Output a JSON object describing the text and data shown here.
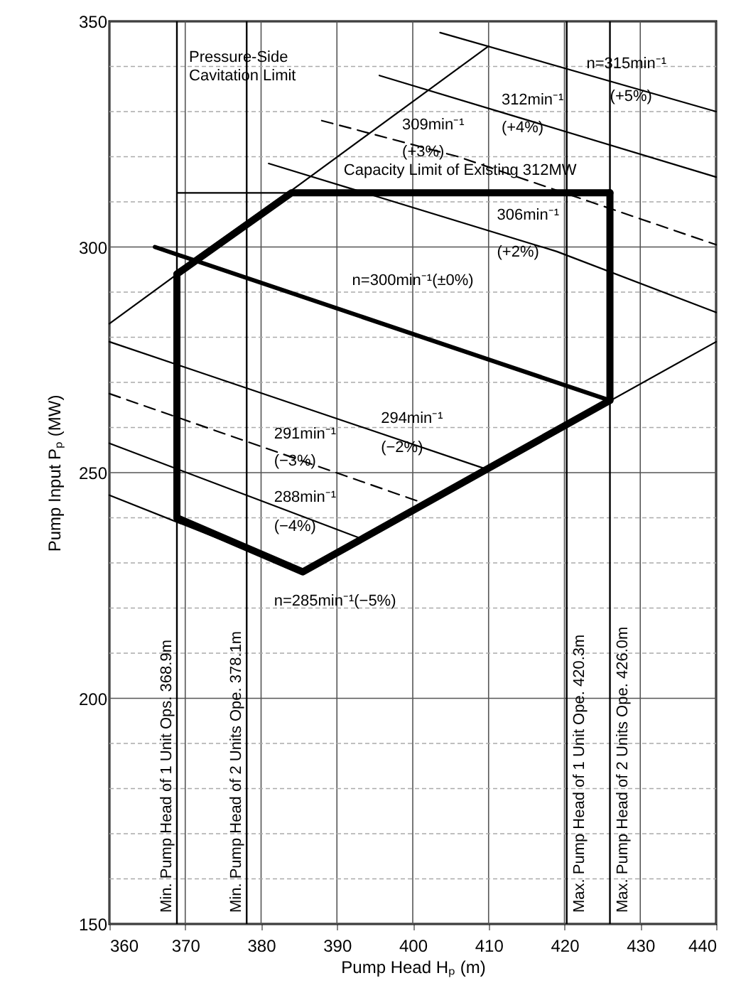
{
  "chart_data": {
    "type": "line",
    "xlabel": "Pump Head Hₚ (m)",
    "ylabel": "Pump Input Pₚ (MW)",
    "xlim": [
      360,
      440
    ],
    "ylim": [
      150,
      350
    ],
    "xticks": [
      360,
      370,
      380,
      390,
      400,
      410,
      420,
      430,
      440
    ],
    "yticks": [
      150,
      {
        "value": 160,
        "label": null
      },
      {
        "value": 170,
        "label": null
      },
      {
        "value": 180,
        "label": null
      },
      {
        "value": 190,
        "label": null
      },
      200,
      {
        "value": 210,
        "label": null
      },
      {
        "value": 220,
        "label": null
      },
      {
        "value": 230,
        "label": null
      },
      {
        "value": 240,
        "label": null
      },
      250,
      {
        "value": 260,
        "label": null
      },
      {
        "value": 270,
        "label": null
      },
      {
        "value": 280,
        "label": null
      },
      {
        "value": 290,
        "label": null
      },
      300,
      {
        "value": 310,
        "label": null
      },
      {
        "value": 320,
        "label": null
      },
      {
        "value": 330,
        "label": null
      },
      {
        "value": 340,
        "label": null
      },
      350
    ],
    "grid": true,
    "marker": "none",
    "series": [
      {
        "color": "#000000",
        "x": [
          368.9,
          384,
          426
        ],
        "values": [
          294,
          312,
          312
        ]
      },
      {
        "color": "#000000",
        "x": [
          368.9,
          385.5,
          426
        ],
        "values": [
          240,
          228,
          266
        ]
      },
      {
        "color": "#000000",
        "x": [
          368.9,
          368.9
        ],
        "values": [
          240,
          294
        ]
      },
      {
        "color": "#000000",
        "x": [
          426,
          426
        ],
        "values": [
          266,
          312
        ]
      },
      {
        "color": "#000000",
        "x": [
          366,
          426
        ],
        "values": [
          300,
          266
        ]
      },
      {
        "color": "#000000",
        "x": [
          403.6,
          440
        ],
        "values": [
          347.5,
          330
        ]
      },
      {
        "color": "#000000",
        "x": [
          395.6,
          440
        ],
        "values": [
          338,
          315.5
        ]
      },
      {
        "color": "#000000",
        "line_style": "dashed",
        "x": [
          388,
          406,
          440
        ],
        "values": [
          328,
          320,
          300.5
        ]
      },
      {
        "color": "#000000",
        "x": [
          381,
          419,
          440
        ],
        "values": [
          318.5,
          299,
          285.5
        ]
      },
      {
        "color": "#000000",
        "x": [
          360,
          409.3
        ],
        "values": [
          279,
          251
        ]
      },
      {
        "color": "#000000",
        "line_style": "dashed",
        "x": [
          360,
          401
        ],
        "values": [
          267.5,
          243.5
        ]
      },
      {
        "color": "#000000",
        "x": [
          360,
          393
        ],
        "values": [
          256.5,
          235.5
        ]
      },
      {
        "color": "#000000",
        "x": [
          360,
          385.5
        ],
        "values": [
          245,
          228
        ]
      },
      {
        "color": "#000000",
        "x": [
          360,
          410
        ],
        "values": [
          283,
          344.5
        ]
      },
      {
        "color": "#000000",
        "x": [
          385.5,
          440
        ],
        "values": [
          228,
          279
        ]
      },
      {
        "color": "#000000",
        "x": [
          368.9,
          426
        ],
        "values": [
          312,
          312
        ]
      }
    ],
    "ref_lines": [
      {
        "axis": "x",
        "value": 368.9,
        "label": "Min. Pump Head of 1 Unit Ops.   368.9m",
        "color": "#000000"
      },
      {
        "axis": "x",
        "value": 378.1,
        "label": "Min. Pump Head of 2 Units Ope.   378.1m",
        "color": "#000000"
      },
      {
        "axis": "x",
        "value": 420.3,
        "label": "Max. Pump Head of 1 Unit Ope.   420.3m",
        "color": "#000000"
      },
      {
        "axis": "x",
        "value": 426.0,
        "label": "Max. Pump Head of 2 Units Ope.   426.0m",
        "color": "#000000"
      }
    ],
    "annotations": [
      "Pressure-Side\nCavitation Limit",
      "n=315min⁻¹",
      "(+5%)",
      "312min⁻¹",
      "(+4%)",
      "309min⁻¹",
      "(+3%)",
      "Capacity Limit of Existing 312MW",
      "306min⁻¹",
      "(+2%)",
      "n=300min⁻¹(±0%)",
      "294min⁻¹",
      "(−2%)",
      "291min⁻¹",
      "(−3%)",
      "288min⁻¹",
      "(−4%)",
      "n=285min⁻¹(−5%)"
    ]
  }
}
